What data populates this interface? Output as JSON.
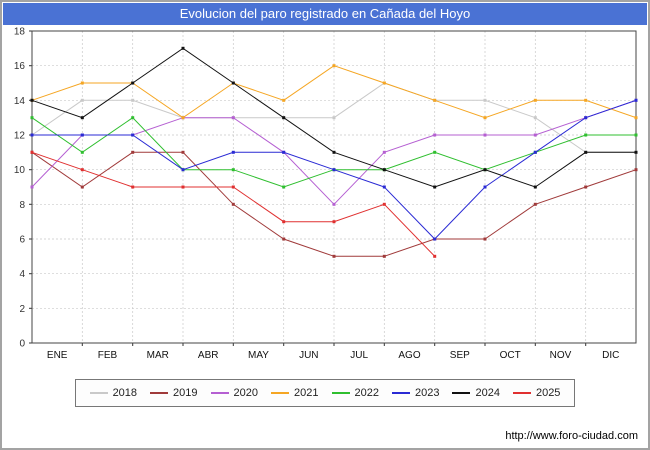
{
  "header": {
    "title": "Evolucion del paro registrado en Cañada del Hoyo",
    "title_bar_color": "#4a72d4"
  },
  "footer": {
    "url": "http://www.foro-ciudad.com"
  },
  "chart_data": {
    "type": "line",
    "title": "Evolucion del paro registrado en Cañada del Hoyo",
    "xlabel": "",
    "ylabel": "",
    "months": [
      "ENE",
      "FEB",
      "MAR",
      "ABR",
      "MAY",
      "JUN",
      "JUL",
      "AGO",
      "SEP",
      "OCT",
      "NOV",
      "DIC"
    ],
    "ylim": [
      0,
      18
    ],
    "ytick_step": 2,
    "grid": true,
    "legend_position": "bottom",
    "layout_note": "13 points per full-year series: first point on the left axis, then one per month gridline; month labels centered between gridlines; 2025 series ends at AGO",
    "series": [
      {
        "name": "2018",
        "color": "#c9c9c9",
        "values": [
          12,
          14,
          14,
          13,
          13,
          13,
          13,
          15,
          14,
          14,
          13,
          11,
          11
        ]
      },
      {
        "name": "2019",
        "color": "#a03a3a",
        "values": [
          11,
          9,
          11,
          11,
          8,
          6,
          5,
          5,
          6,
          6,
          8,
          9,
          10
        ]
      },
      {
        "name": "2020",
        "color": "#b55fd2",
        "values": [
          9,
          12,
          12,
          13,
          13,
          11,
          8,
          11,
          12,
          12,
          12,
          13,
          14
        ]
      },
      {
        "name": "2021",
        "color": "#f5a623",
        "values": [
          14,
          15,
          15,
          13,
          15,
          14,
          16,
          15,
          14,
          13,
          14,
          14,
          13
        ]
      },
      {
        "name": "2022",
        "color": "#2fbf2f",
        "values": [
          13,
          11,
          13,
          10,
          10,
          9,
          10,
          10,
          11,
          10,
          11,
          12,
          12
        ]
      },
      {
        "name": "2023",
        "color": "#2a2ad4",
        "values": [
          12,
          12,
          12,
          10,
          11,
          11,
          10,
          9,
          6,
          9,
          11,
          13,
          14
        ]
      },
      {
        "name": "2024",
        "color": "#111111",
        "values": [
          14,
          13,
          15,
          17,
          15,
          13,
          11,
          10,
          9,
          10,
          9,
          11,
          11
        ]
      },
      {
        "name": "2025",
        "color": "#e03030",
        "values": [
          11,
          10,
          9,
          9,
          9,
          7,
          7,
          8,
          5
        ]
      }
    ]
  }
}
